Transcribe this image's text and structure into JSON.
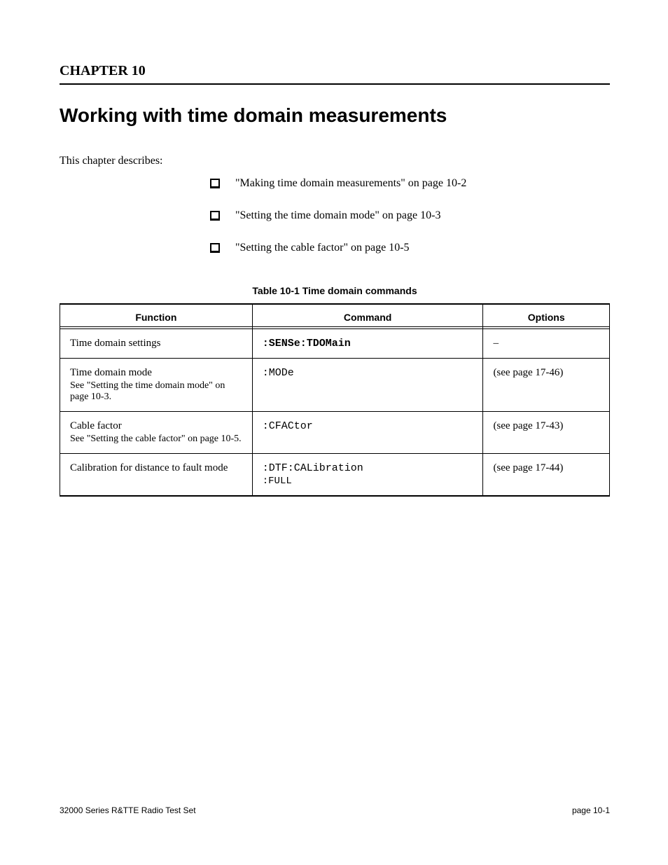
{
  "chapter_number": "CHAPTER 10",
  "chapter_title": "Working with time domain measurements",
  "intro": "This chapter describes:",
  "bullets": [
    {
      "text": "\"Making time domain measurements\"",
      "page": "on page 10-2"
    },
    {
      "text": "\"Setting the time domain mode\"",
      "page": "on page 10-3"
    },
    {
      "text": "\"Setting the cable factor\"",
      "page": "on page 10-5"
    }
  ],
  "table_caption": "Table 10-1 Time domain commands",
  "table": {
    "columns": [
      "Function",
      "Command",
      "Options"
    ],
    "rows": [
      [
        {
          "text": "Time domain settings"
        },
        {
          "mono": ":SENSe:TDOMain"
        },
        {
          "text": "–"
        }
      ],
      [
        {
          "text": "Time domain mode",
          "sub_a": "See ",
          "sub_link": "\"Setting the time domain mode\"",
          "sub_b": " on page 10-3."
        },
        {
          "mono": ":MODe"
        },
        {
          "small": "(see page 17-46)"
        }
      ],
      [
        {
          "text": "Cable factor",
          "sub_a": "See ",
          "sub_link": "\"Setting the cable factor\"",
          "sub_b": " on page 10-5."
        },
        {
          "mono": ":CFACtor"
        },
        {
          "small": "(see page 17-43)"
        }
      ],
      [
        {
          "text": "Calibration for distance to fault mode"
        },
        {
          "mono": ":DTF:CALibration",
          "sub_mono": ":FULL"
        },
        {
          "small": "(see page 17-44)"
        }
      ]
    ],
    "styles": {
      "border_color": "#000000",
      "header_font": "Arial",
      "header_fontsize": 14,
      "body_fontsize": 15,
      "mono_font": "Courier New",
      "col_widths_pct": [
        35,
        42,
        23
      ]
    }
  },
  "footer": {
    "left": "32000 Series R&TTE Radio Test Set",
    "right": "page 10-1"
  },
  "page_bg": "#ffffff",
  "text_color": "#000000"
}
